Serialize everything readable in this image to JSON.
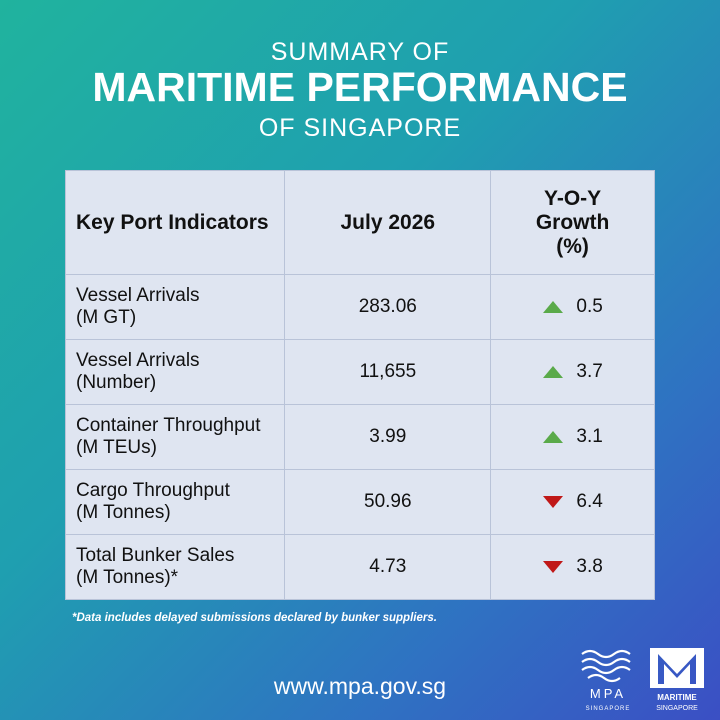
{
  "header": {
    "line1": "SUMMARY OF",
    "line2": "MARITIME PERFORMANCE",
    "line3": "OF SINGAPORE"
  },
  "table": {
    "columns": [
      "Key Port Indicators",
      "July 2026",
      "Y-O-Y Growth (%)"
    ],
    "rows": [
      {
        "label": "Vessel Arrivals",
        "unit": "(M GT)",
        "value": "283.06",
        "growth": "0.5",
        "trend": "up"
      },
      {
        "label": "Vessel Arrivals",
        "unit": "(Number)",
        "value": "11,655",
        "growth": "3.7",
        "trend": "up"
      },
      {
        "label": "Container Throughput",
        "unit": "(M TEUs)",
        "value": "3.99",
        "growth": "3.1",
        "trend": "up"
      },
      {
        "label": "Cargo Throughput",
        "unit": "(M Tonnes)",
        "value": "50.96",
        "growth": "6.4",
        "trend": "down"
      },
      {
        "label": "Total Bunker Sales",
        "unit": "(M Tonnes)*",
        "value": "4.73",
        "growth": "3.8",
        "trend": "down"
      }
    ],
    "up_color": "#5aaa4a",
    "down_color": "#c01818"
  },
  "footnote": "*Data includes delayed submissions declared by bunker suppliers.",
  "url": "www.mpa.gov.sg",
  "logos": {
    "mpa": "MPA",
    "mpa_sub": "SINGAPORE",
    "ms": "MARITIME",
    "ms_sub": "SINGAPORE"
  }
}
